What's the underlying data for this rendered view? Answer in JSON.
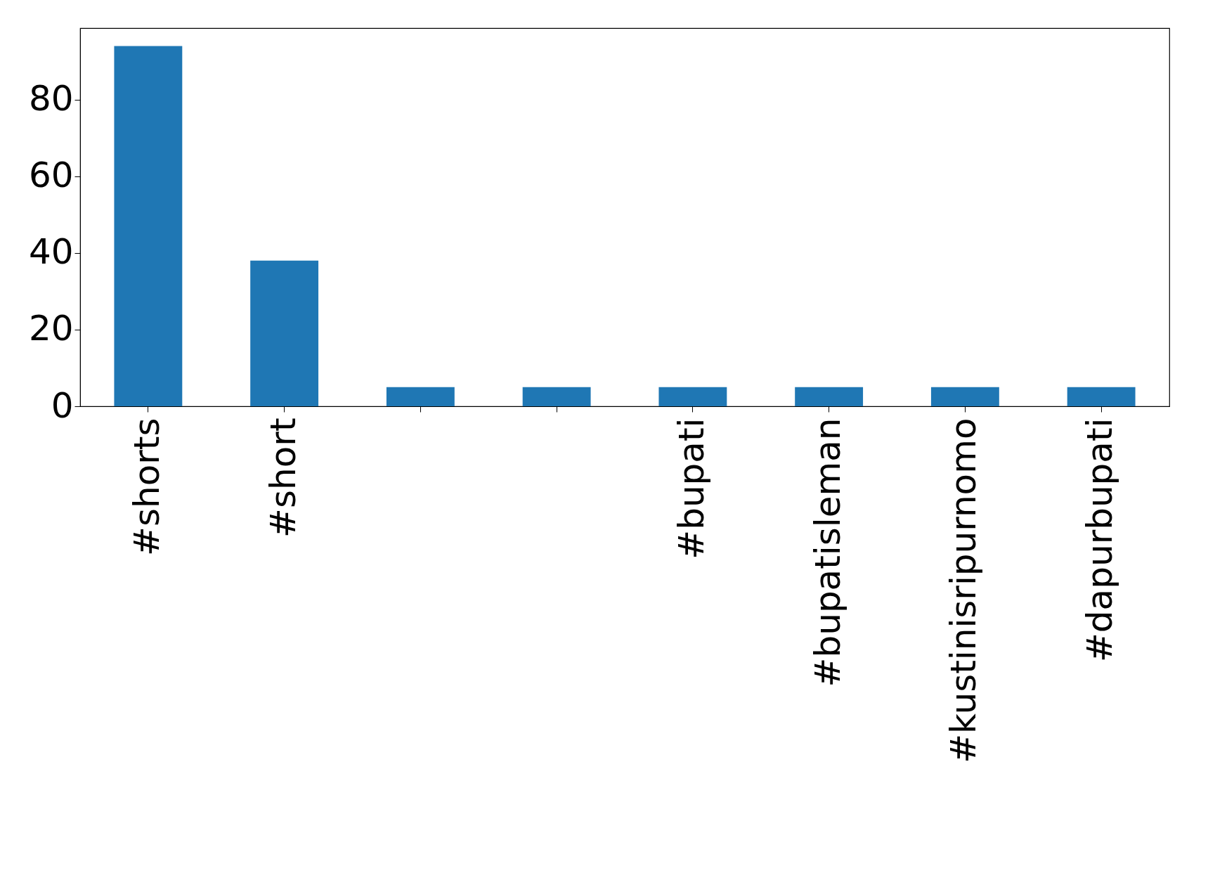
{
  "chart_data": {
    "type": "bar",
    "categories": [
      "#shorts",
      "#short",
      null,
      null,
      "#bupati",
      "#bupatisleman",
      "#kustinisripurnomo",
      "#dapurbupati"
    ],
    "values": [
      94,
      38,
      5,
      5,
      5,
      5,
      5,
      5
    ],
    "color": "#1f77b4",
    "ylim": [
      0,
      98.7
    ],
    "yticks": [
      0,
      20,
      40,
      60,
      80
    ],
    "grid": false
  }
}
